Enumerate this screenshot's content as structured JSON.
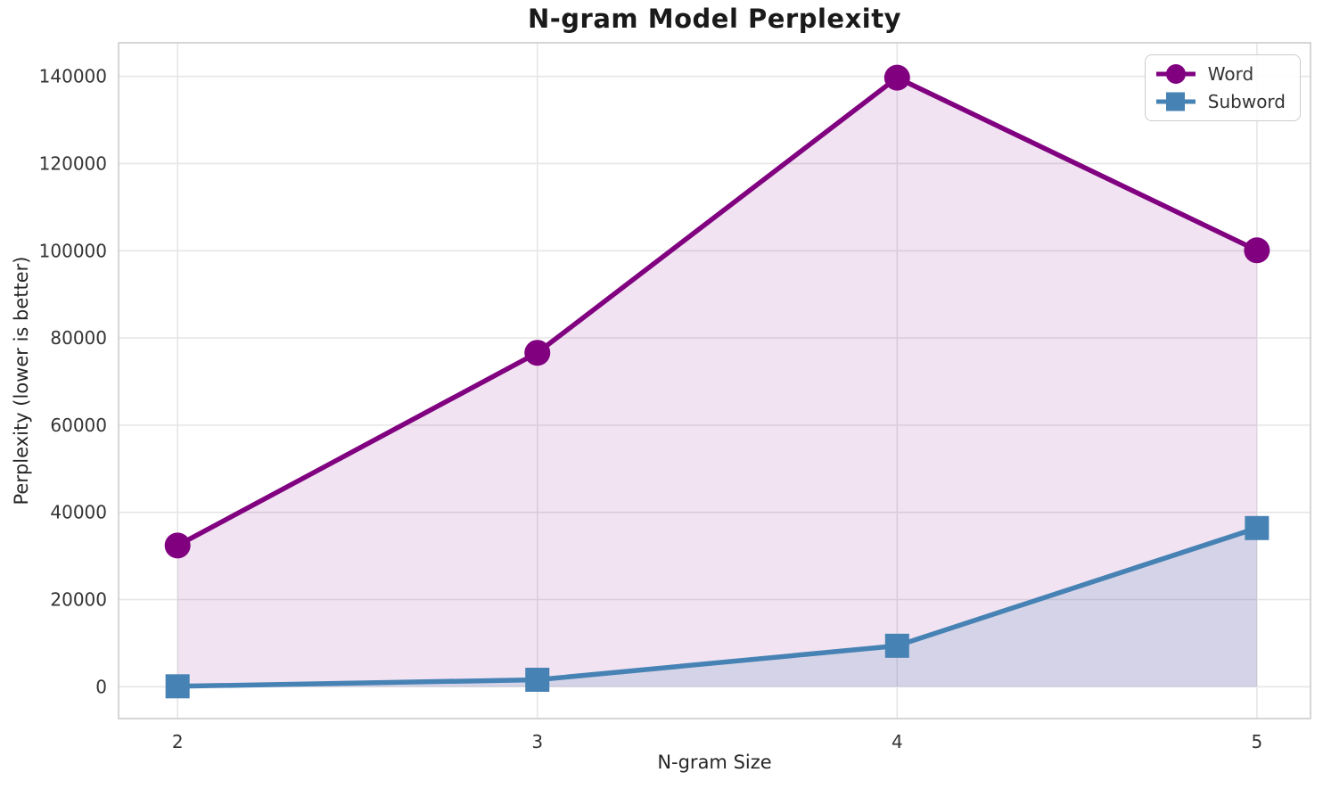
{
  "chart_data": {
    "type": "line",
    "title": "N-gram Model Perplexity",
    "xlabel": "N-gram Size",
    "ylabel": "Perplexity (lower is better)",
    "x": [
      2,
      3,
      4,
      5
    ],
    "x_tick_labels": [
      "2",
      "3",
      "4",
      "5"
    ],
    "y_ticks": [
      0,
      20000,
      40000,
      60000,
      80000,
      100000,
      120000,
      140000
    ],
    "y_tick_labels": [
      "0",
      "20000",
      "40000",
      "60000",
      "80000",
      "100000",
      "120000",
      "140000"
    ],
    "xlim": [
      1.836,
      5.149
    ],
    "ylim": [
      -7300,
      147700
    ],
    "grid": true,
    "legend_position": "upper right",
    "series": [
      {
        "name": "Word",
        "values": [
          32400,
          76600,
          139700,
          100100
        ],
        "color": "#800080",
        "marker": "circle",
        "fill_opacity": 0.11
      },
      {
        "name": "Subword",
        "values": [
          100,
          1600,
          9400,
          36400
        ],
        "color": "#4682B4",
        "marker": "square",
        "fill_opacity": 0.16
      }
    ],
    "colors": {
      "grid": "#E6E6E6",
      "spine": "#CCCCCC",
      "tick_text": "#333333",
      "title_text": "#1A1A1A",
      "label_text": "#262626",
      "legend_border": "#CCCCCC",
      "plot_background": "#FFFFFF"
    }
  }
}
